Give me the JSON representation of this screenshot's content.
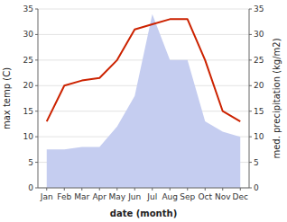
{
  "chart_data": {
    "type": "line",
    "categories": [
      "Jan",
      "Feb",
      "Mar",
      "Apr",
      "May",
      "Jun",
      "Jul",
      "Aug",
      "Sep",
      "Oct",
      "Nov",
      "Dec"
    ],
    "xlabel": "date (month)",
    "ylabel": "max temp (C)",
    "y2label": "med. precipitation (kg/m2)",
    "series": [
      {
        "type": "line",
        "color": "#cc2200",
        "values": [
          13,
          20,
          21,
          21.5,
          25,
          31,
          32,
          33,
          33,
          25,
          15,
          13
        ]
      },
      {
        "type": "area",
        "color": "#c5cdf0",
        "axis": "y2",
        "values": [
          7.5,
          7.5,
          8,
          8,
          12,
          18,
          34,
          25,
          25,
          13,
          11,
          10
        ]
      }
    ],
    "ylim": [
      0,
      35
    ],
    "yticks": [
      0,
      5,
      10,
      15,
      20,
      25,
      30,
      35
    ],
    "y2lim": [
      0,
      35
    ],
    "y2ticks": [
      0,
      5,
      10,
      15,
      20,
      25,
      30,
      35
    ],
    "grid": true
  }
}
